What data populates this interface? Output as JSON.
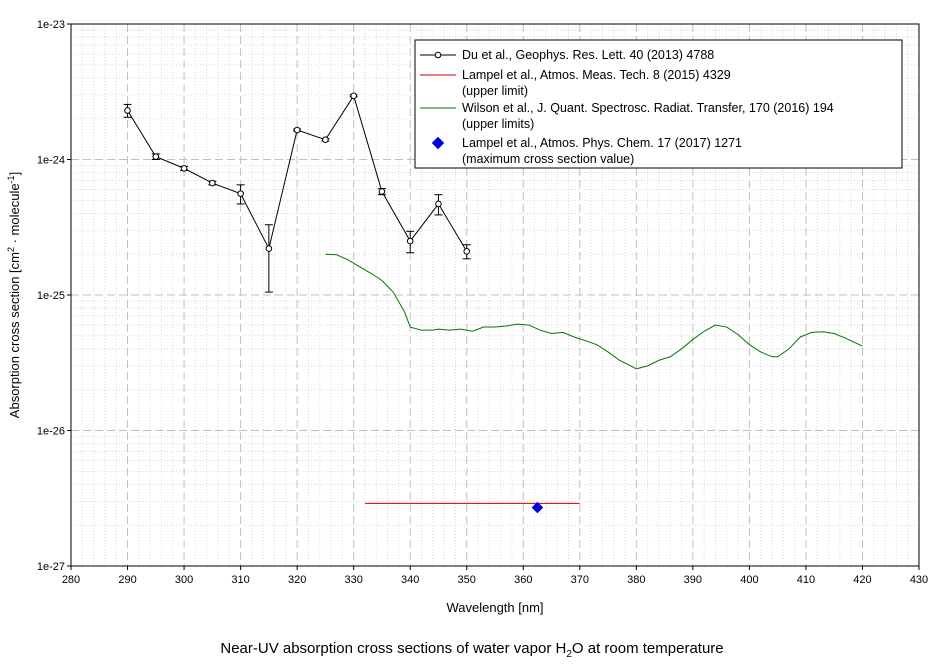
{
  "caption": {
    "prefix": "Near-UV absorption cross sections of water vapor H",
    "subscript": "2",
    "suffix": "O at room temperature"
  },
  "chart_data": {
    "type": "scatter",
    "xlabel": "Wavelength [nm]",
    "ylabel": {
      "text1": "Absorption cross section [cm",
      "sup1": "2",
      "text2": " · molecule",
      "sup2": "-1",
      "text3": "]"
    },
    "x_range": [
      280,
      430
    ],
    "x_ticks": [
      280,
      290,
      300,
      310,
      320,
      330,
      340,
      350,
      360,
      370,
      380,
      390,
      400,
      410,
      420,
      430
    ],
    "y_scale": "log",
    "y_range": [
      1e-27,
      1e-23
    ],
    "y_ticks": [
      {
        "value": 1e-23,
        "label": "1e-23"
      },
      {
        "value": 1e-24,
        "label": "1e-24"
      },
      {
        "value": 1e-25,
        "label": "1e-25"
      },
      {
        "value": 1e-26,
        "label": "1e-26"
      },
      {
        "value": 1e-27,
        "label": "1e-27"
      }
    ],
    "grid": true,
    "legend_position": "top-right",
    "colors": {
      "du": "#000000",
      "lampel2015": "#cc0000",
      "wilson": "#007700",
      "lampel2017": "#0000dd"
    },
    "series": [
      {
        "name": "Du et al., Geophys. Res. Lett. 40 (2013) 4788",
        "style": "line-open-circles-errorbars",
        "x": [
          290,
          295,
          300,
          305,
          310,
          315,
          320,
          325,
          330,
          335,
          340,
          345,
          350
        ],
        "y": [
          2.3e-24,
          1.05e-24,
          8.6e-25,
          6.7e-25,
          5.6e-25,
          2.2e-25,
          1.65e-24,
          1.4e-24,
          2.95e-24,
          5.8e-25,
          2.5e-25,
          4.7e-25,
          2.1e-25
        ],
        "y_low": [
          2.05e-24,
          1e-24,
          8.3e-25,
          6.5e-25,
          4.7e-25,
          1.05e-25,
          1.62e-24,
          1.37e-24,
          2.9e-24,
          5.5e-25,
          2.05e-25,
          3.9e-25,
          1.85e-25
        ],
        "y_high": [
          2.55e-24,
          1.1e-24,
          8.9e-25,
          6.9e-25,
          6.5e-25,
          3.3e-25,
          1.68e-24,
          1.43e-24,
          3e-24,
          6.1e-25,
          2.95e-25,
          5.5e-25,
          2.35e-25
        ]
      },
      {
        "name": "Lampel et al., Atmos. Meas. Tech. 8 (2015) 4329",
        "name2": "(upper limit)",
        "style": "line",
        "x": [
          332,
          370
        ],
        "y": [
          2.9e-27,
          2.9e-27
        ]
      },
      {
        "name": "Wilson et al., J. Quant. Spectrosc. Radiat. Transfer, 170 (2016) 194",
        "name2": "(upper limits)",
        "style": "line",
        "x": [
          325,
          327,
          329,
          331,
          333,
          335,
          337,
          339,
          340,
          342,
          344,
          345,
          347,
          349,
          351,
          353,
          355,
          357,
          359,
          361,
          363,
          365,
          367,
          369,
          371,
          373,
          375,
          377,
          379,
          380,
          382,
          384,
          386,
          388,
          390,
          392,
          394,
          396,
          398,
          400,
          402,
          404,
          405,
          407,
          409,
          411,
          413,
          415,
          417,
          420
        ],
        "y": [
          2e-25,
          1.98e-25,
          1.82e-25,
          1.62e-25,
          1.45e-25,
          1.28e-25,
          1.05e-25,
          7.5e-26,
          5.8e-26,
          5.5e-26,
          5.5e-26,
          5.6e-26,
          5.5e-26,
          5.6e-26,
          5.4e-26,
          5.8e-26,
          5.8e-26,
          5.9e-26,
          6.1e-26,
          6e-26,
          5.5e-26,
          5.2e-26,
          5.3e-26,
          4.9e-26,
          4.6e-26,
          4.3e-26,
          3.8e-26,
          3.3e-26,
          3e-26,
          2.85e-26,
          3e-26,
          3.3e-26,
          3.5e-26,
          4e-26,
          4.7e-26,
          5.4e-26,
          6e-26,
          5.8e-26,
          5.1e-26,
          4.3e-26,
          3.8e-26,
          3.5e-26,
          3.5e-26,
          4e-26,
          4.9e-26,
          5.3e-26,
          5.35e-26,
          5.2e-26,
          4.8e-26,
          4.2e-26
        ]
      },
      {
        "name": "Lampel et al., Atmos. Phys. Chem. 17 (2017) 1271",
        "name2": "(maximum cross section value)",
        "style": "diamond",
        "x": [
          362.5
        ],
        "y": [
          2.7e-27
        ]
      }
    ]
  }
}
